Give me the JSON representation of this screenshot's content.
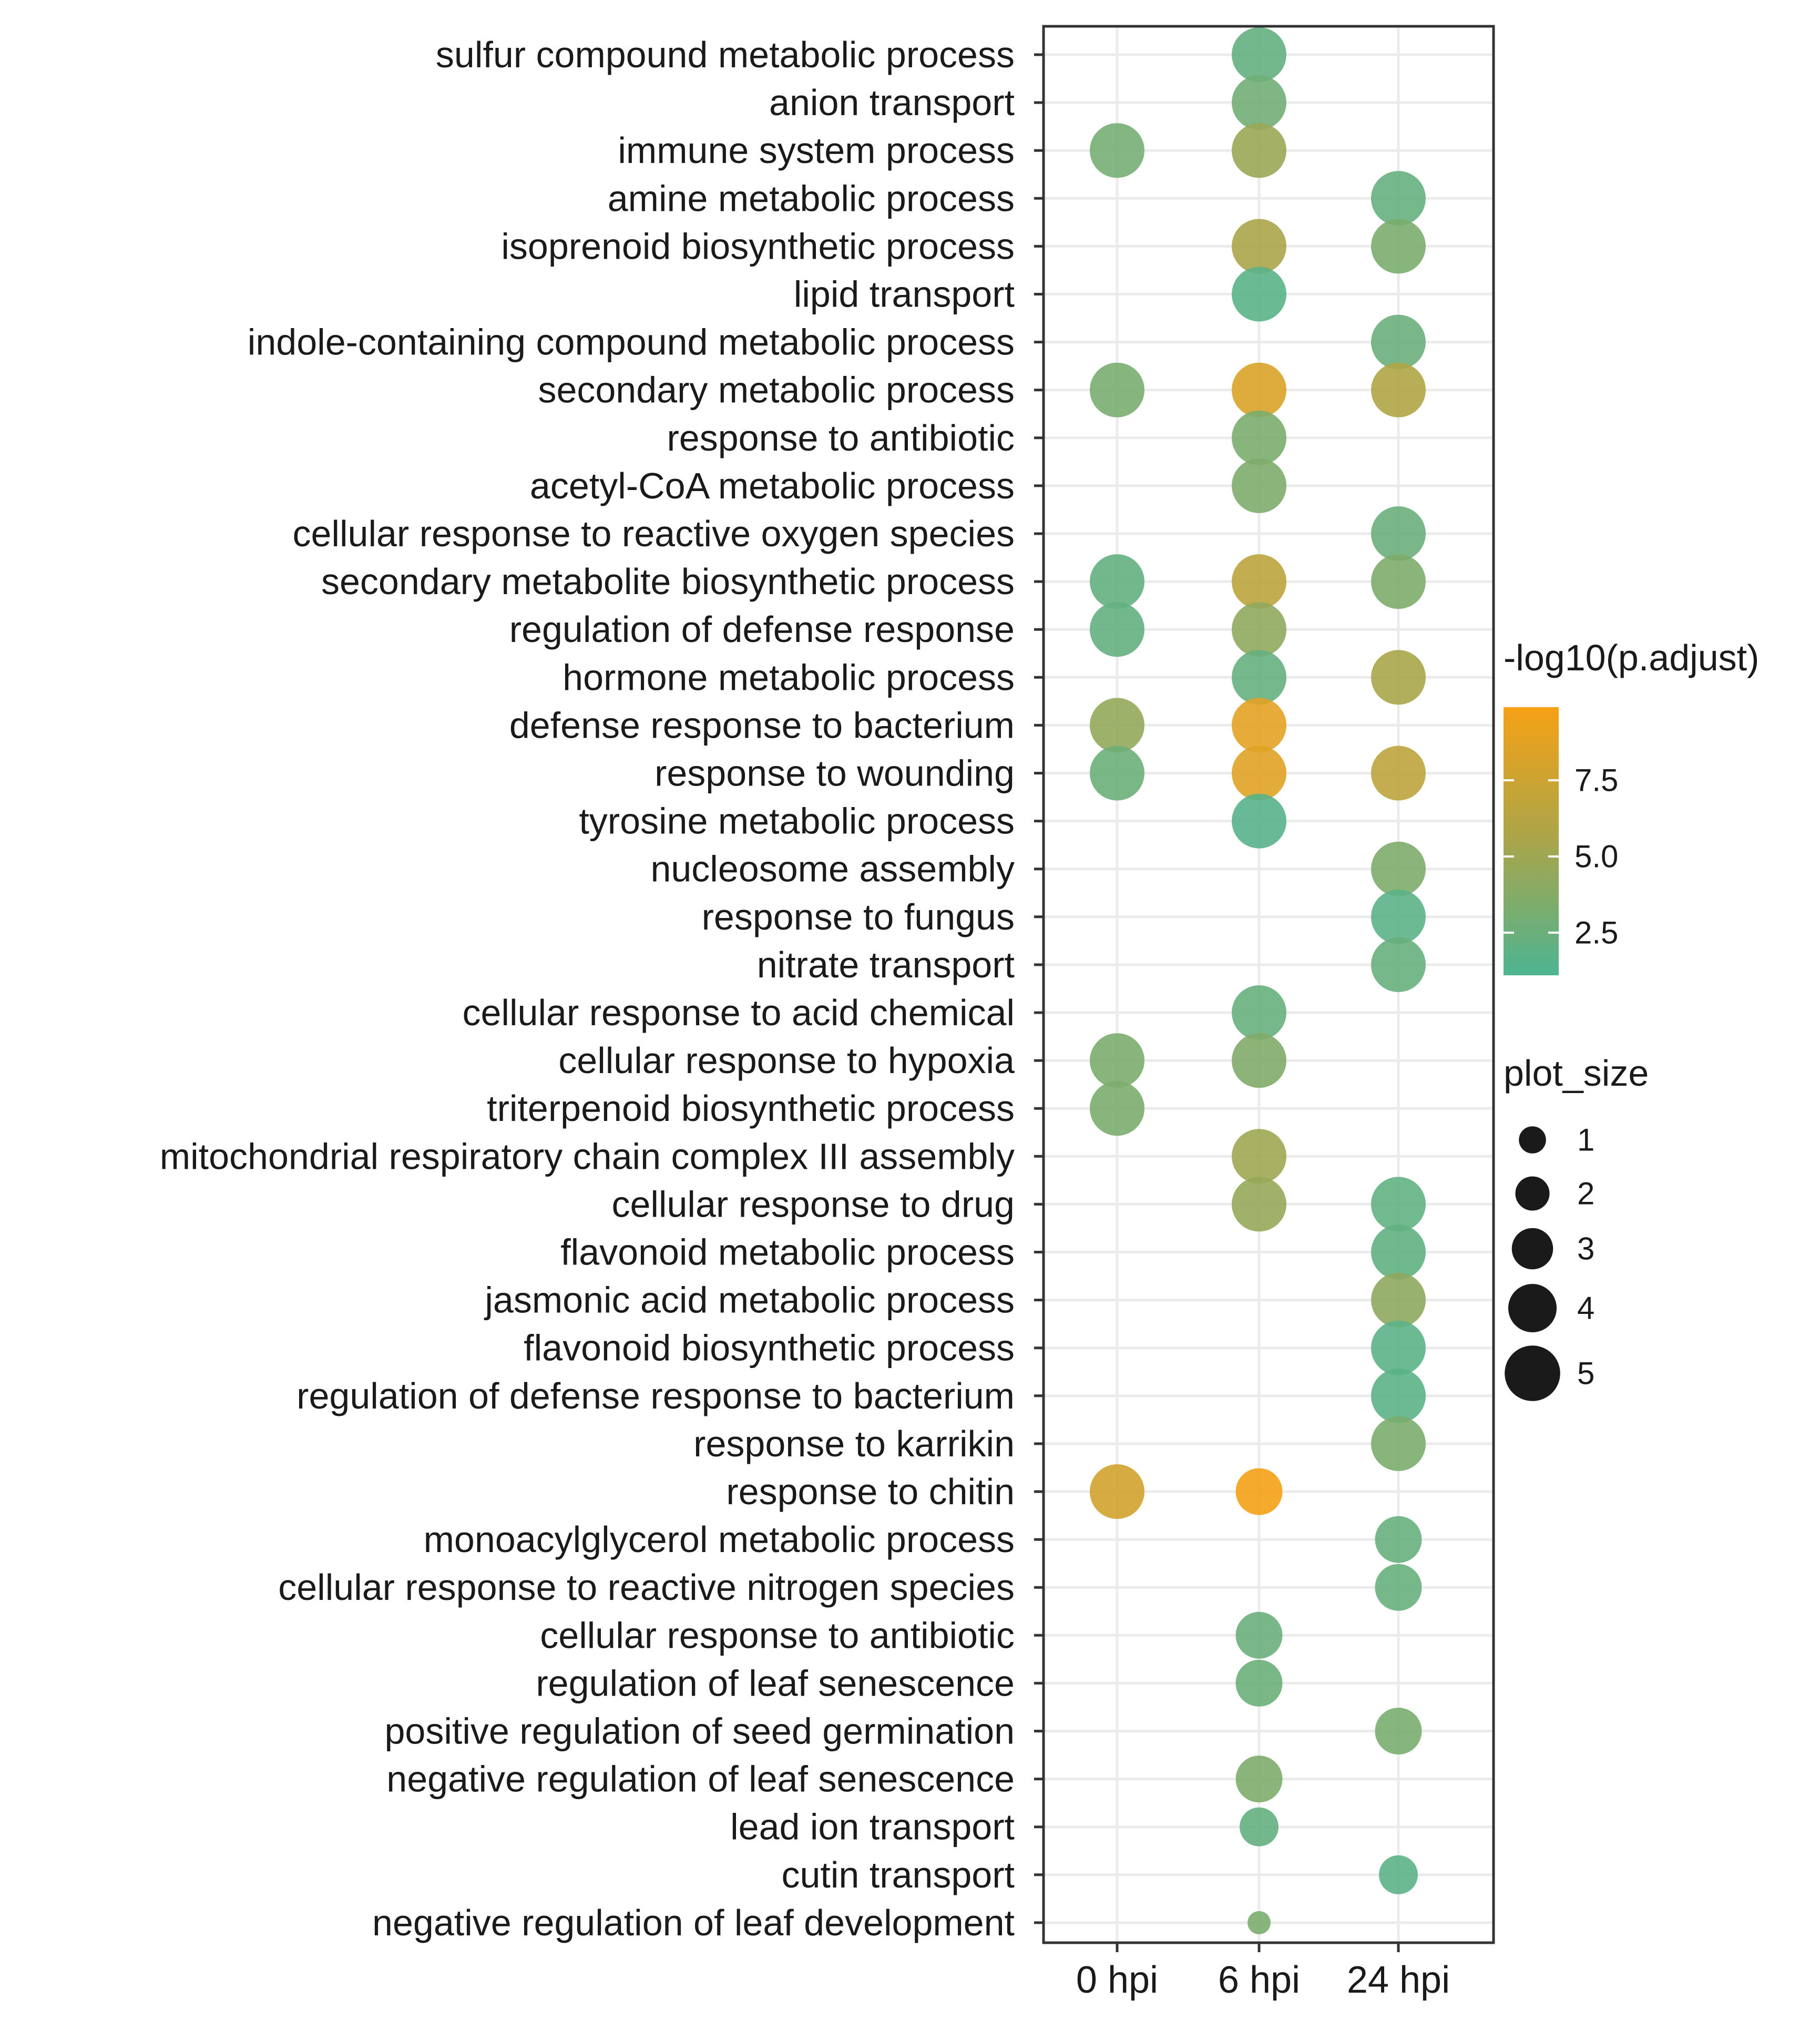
{
  "chart_data": {
    "type": "scatter",
    "subtype": "dot-plot",
    "title": "",
    "xlabel": "",
    "ylabel": "",
    "x_categories": [
      "0 hpi",
      "6 hpi",
      "24 hpi"
    ],
    "y_categories": [
      "sulfur compound metabolic process",
      "anion transport",
      "immune system process",
      "amine metabolic process",
      "isoprenoid biosynthetic process",
      "lipid transport",
      "indole-containing compound metabolic process",
      "secondary metabolic process",
      "response to antibiotic",
      "acetyl-CoA metabolic process",
      "cellular response to reactive oxygen species",
      "secondary metabolite biosynthetic process",
      "regulation of defense response",
      "hormone metabolic process",
      "defense response to bacterium",
      "response to wounding",
      "tyrosine metabolic process",
      "nucleosome assembly",
      "response to fungus",
      "nitrate transport",
      "cellular response to acid chemical",
      "cellular response to hypoxia",
      "triterpenoid biosynthetic process",
      "mitochondrial respiratory chain complex III assembly",
      "cellular response to drug",
      "flavonoid metabolic process",
      "jasmonic acid metabolic process",
      "flavonoid biosynthetic process",
      "regulation of defense response to bacterium",
      "response to karrikin",
      "response to chitin",
      "monoacylglycerol metabolic process",
      "cellular response to reactive nitrogen species",
      "cellular response to antibiotic",
      "regulation of leaf senescence",
      "positive regulation of seed germination",
      "negative regulation of leaf senescence",
      "lead ion transport",
      "cutin transport",
      "negative regulation of leaf development"
    ],
    "points": [
      {
        "term": "sulfur compound metabolic process",
        "time": "6 hpi",
        "neglog10_padj": 2.2,
        "plot_size": 5
      },
      {
        "term": "anion transport",
        "time": "6 hpi",
        "neglog10_padj": 2.8,
        "plot_size": 5
      },
      {
        "term": "immune system process",
        "time": "0 hpi",
        "neglog10_padj": 3.0,
        "plot_size": 5
      },
      {
        "term": "immune system process",
        "time": "6 hpi",
        "neglog10_padj": 4.8,
        "plot_size": 5
      },
      {
        "term": "amine metabolic process",
        "time": "24 hpi",
        "neglog10_padj": 2.3,
        "plot_size": 5
      },
      {
        "term": "isoprenoid biosynthetic process",
        "time": "6 hpi",
        "neglog10_padj": 5.6,
        "plot_size": 5
      },
      {
        "term": "isoprenoid biosynthetic process",
        "time": "24 hpi",
        "neglog10_padj": 3.3,
        "plot_size": 5
      },
      {
        "term": "lipid transport",
        "time": "6 hpi",
        "neglog10_padj": 1.7,
        "plot_size": 5
      },
      {
        "term": "indole-containing compound metabolic process",
        "time": "24 hpi",
        "neglog10_padj": 2.5,
        "plot_size": 5
      },
      {
        "term": "secondary metabolic process",
        "time": "0 hpi",
        "neglog10_padj": 3.2,
        "plot_size": 5
      },
      {
        "term": "secondary metabolic process",
        "time": "6 hpi",
        "neglog10_padj": 8.3,
        "plot_size": 5
      },
      {
        "term": "secondary metabolic process",
        "time": "24 hpi",
        "neglog10_padj": 5.9,
        "plot_size": 5
      },
      {
        "term": "response to antibiotic",
        "time": "6 hpi",
        "neglog10_padj": 3.3,
        "plot_size": 5
      },
      {
        "term": "acetyl-CoA metabolic process",
        "time": "6 hpi",
        "neglog10_padj": 3.4,
        "plot_size": 5
      },
      {
        "term": "cellular response to reactive oxygen species",
        "time": "24 hpi",
        "neglog10_padj": 2.5,
        "plot_size": 5
      },
      {
        "term": "secondary metabolite biosynthetic process",
        "time": "0 hpi",
        "neglog10_padj": 2.2,
        "plot_size": 5
      },
      {
        "term": "secondary metabolite biosynthetic process",
        "time": "6 hpi",
        "neglog10_padj": 6.5,
        "plot_size": 5
      },
      {
        "term": "secondary metabolite biosynthetic process",
        "time": "24 hpi",
        "neglog10_padj": 3.4,
        "plot_size": 5
      },
      {
        "term": "regulation of defense response",
        "time": "0 hpi",
        "neglog10_padj": 2.2,
        "plot_size": 5
      },
      {
        "term": "regulation of defense response",
        "time": "6 hpi",
        "neglog10_padj": 4.3,
        "plot_size": 5
      },
      {
        "term": "hormone metabolic process",
        "time": "6 hpi",
        "neglog10_padj": 2.3,
        "plot_size": 5
      },
      {
        "term": "hormone metabolic process",
        "time": "24 hpi",
        "neglog10_padj": 5.5,
        "plot_size": 5
      },
      {
        "term": "defense response to bacterium",
        "time": "0 hpi",
        "neglog10_padj": 4.5,
        "plot_size": 5
      },
      {
        "term": "defense response to bacterium",
        "time": "6 hpi",
        "neglog10_padj": 8.8,
        "plot_size": 5
      },
      {
        "term": "response to wounding",
        "time": "0 hpi",
        "neglog10_padj": 2.6,
        "plot_size": 5
      },
      {
        "term": "response to wounding",
        "time": "6 hpi",
        "neglog10_padj": 8.6,
        "plot_size": 5
      },
      {
        "term": "response to wounding",
        "time": "24 hpi",
        "neglog10_padj": 6.6,
        "plot_size": 5
      },
      {
        "term": "tyrosine metabolic process",
        "time": "6 hpi",
        "neglog10_padj": 1.6,
        "plot_size": 5
      },
      {
        "term": "nucleosome assembly",
        "time": "24 hpi",
        "neglog10_padj": 3.4,
        "plot_size": 5
      },
      {
        "term": "response to fungus",
        "time": "24 hpi",
        "neglog10_padj": 1.8,
        "plot_size": 5
      },
      {
        "term": "nitrate transport",
        "time": "24 hpi",
        "neglog10_padj": 2.4,
        "plot_size": 5
      },
      {
        "term": "cellular response to acid chemical",
        "time": "6 hpi",
        "neglog10_padj": 2.4,
        "plot_size": 5
      },
      {
        "term": "cellular response to hypoxia",
        "time": "0 hpi",
        "neglog10_padj": 3.3,
        "plot_size": 5
      },
      {
        "term": "cellular response to hypoxia",
        "time": "6 hpi",
        "neglog10_padj": 3.6,
        "plot_size": 5
      },
      {
        "term": "triterpenoid biosynthetic process",
        "time": "0 hpi",
        "neglog10_padj": 3.3,
        "plot_size": 5
      },
      {
        "term": "mitochondrial respiratory chain complex III assembly",
        "time": "6 hpi",
        "neglog10_padj": 5.0,
        "plot_size": 5
      },
      {
        "term": "cellular response to drug",
        "time": "6 hpi",
        "neglog10_padj": 4.6,
        "plot_size": 5
      },
      {
        "term": "cellular response to drug",
        "time": "24 hpi",
        "neglog10_padj": 2.1,
        "plot_size": 5
      },
      {
        "term": "flavonoid metabolic process",
        "time": "24 hpi",
        "neglog10_padj": 2.0,
        "plot_size": 5
      },
      {
        "term": "jasmonic acid metabolic process",
        "time": "24 hpi",
        "neglog10_padj": 4.2,
        "plot_size": 5
      },
      {
        "term": "flavonoid biosynthetic process",
        "time": "24 hpi",
        "neglog10_padj": 1.8,
        "plot_size": 5
      },
      {
        "term": "regulation of defense response to bacterium",
        "time": "24 hpi",
        "neglog10_padj": 1.8,
        "plot_size": 5
      },
      {
        "term": "response to karrikin",
        "time": "24 hpi",
        "neglog10_padj": 3.3,
        "plot_size": 5
      },
      {
        "term": "response to chitin",
        "time": "0 hpi",
        "neglog10_padj": 7.8,
        "plot_size": 5
      },
      {
        "term": "response to chitin",
        "time": "6 hpi",
        "neglog10_padj": 9.8,
        "plot_size": 4
      },
      {
        "term": "monoacylglycerol metabolic process",
        "time": "24 hpi",
        "neglog10_padj": 2.4,
        "plot_size": 4
      },
      {
        "term": "cellular response to reactive nitrogen species",
        "time": "24 hpi",
        "neglog10_padj": 2.4,
        "plot_size": 4
      },
      {
        "term": "cellular response to antibiotic",
        "time": "6 hpi",
        "neglog10_padj": 2.5,
        "plot_size": 4
      },
      {
        "term": "regulation of leaf senescence",
        "time": "6 hpi",
        "neglog10_padj": 2.6,
        "plot_size": 4
      },
      {
        "term": "positive regulation of seed germination",
        "time": "24 hpi",
        "neglog10_padj": 3.2,
        "plot_size": 4
      },
      {
        "term": "negative regulation of leaf senescence",
        "time": "6 hpi",
        "neglog10_padj": 3.4,
        "plot_size": 4
      },
      {
        "term": "lead ion transport",
        "time": "6 hpi",
        "neglog10_padj": 2.2,
        "plot_size": 3
      },
      {
        "term": "cutin transport",
        "time": "24 hpi",
        "neglog10_padj": 1.8,
        "plot_size": 3
      },
      {
        "term": "negative regulation of leaf development",
        "time": "6 hpi",
        "neglog10_padj": 3.3,
        "plot_size": 1
      }
    ],
    "color_scale": {
      "title": "-log10(p.adjust)",
      "min": 1.1,
      "max": 9.9,
      "ticks": [
        2.5,
        5.0,
        7.5
      ],
      "tick_labels": [
        "2.5",
        "5.0",
        "7.5"
      ],
      "low_color": "#4DB492",
      "mid_color": "#A9A54A",
      "high_color": "#F6A115"
    },
    "size_legend": {
      "title": "plot_size",
      "values": [
        1,
        2,
        3,
        4,
        5
      ],
      "labels": [
        "1",
        "2",
        "3",
        "4",
        "5"
      ]
    },
    "legend_position": "right",
    "grid": true
  }
}
